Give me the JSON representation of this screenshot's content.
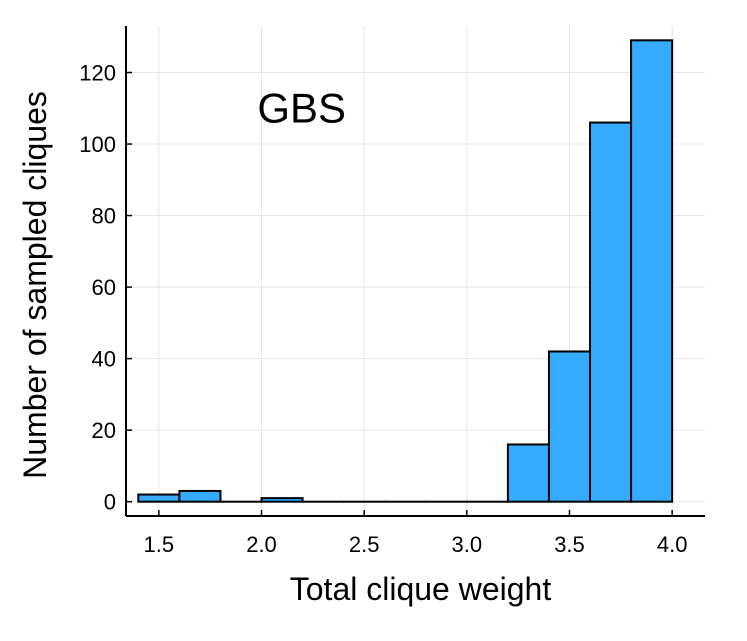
{
  "chart_data": {
    "type": "bar",
    "histogram": true,
    "bins": [
      {
        "x0": 1.4,
        "x1": 1.6,
        "count": 2
      },
      {
        "x0": 1.6,
        "x1": 1.8,
        "count": 3
      },
      {
        "x0": 1.8,
        "x1": 2.0,
        "count": 0
      },
      {
        "x0": 2.0,
        "x1": 2.2,
        "count": 1
      },
      {
        "x0": 2.2,
        "x1": 2.4,
        "count": 0
      },
      {
        "x0": 2.4,
        "x1": 2.6,
        "count": 0
      },
      {
        "x0": 2.6,
        "x1": 2.8,
        "count": 0
      },
      {
        "x0": 2.8,
        "x1": 3.0,
        "count": 0
      },
      {
        "x0": 3.0,
        "x1": 3.2,
        "count": 0
      },
      {
        "x0": 3.2,
        "x1": 3.4,
        "count": 16
      },
      {
        "x0": 3.4,
        "x1": 3.6,
        "count": 42
      },
      {
        "x0": 3.6,
        "x1": 3.8,
        "count": 106
      },
      {
        "x0": 3.8,
        "x1": 4.0,
        "count": 129
      }
    ],
    "xlabel": "Total clique weight",
    "ylabel": "Number of sampled cliques",
    "xlim": [
      1.34,
      4.16
    ],
    "ylim": [
      -4,
      133
    ],
    "xticks": [
      1.5,
      2.0,
      2.5,
      3.0,
      3.5,
      4.0
    ],
    "xtick_labels": [
      "1.5",
      "2.0",
      "2.5",
      "3.0",
      "3.5",
      "4.0"
    ],
    "yticks": [
      0,
      20,
      40,
      60,
      80,
      100,
      120
    ],
    "ytick_labels": [
      "0",
      "20",
      "40",
      "60",
      "80",
      "100",
      "120"
    ],
    "annotation": {
      "text": "GBS",
      "x": 2.35,
      "y": 110
    },
    "grid": true,
    "bar_color": "#35abff",
    "edge_color": "#000000"
  }
}
